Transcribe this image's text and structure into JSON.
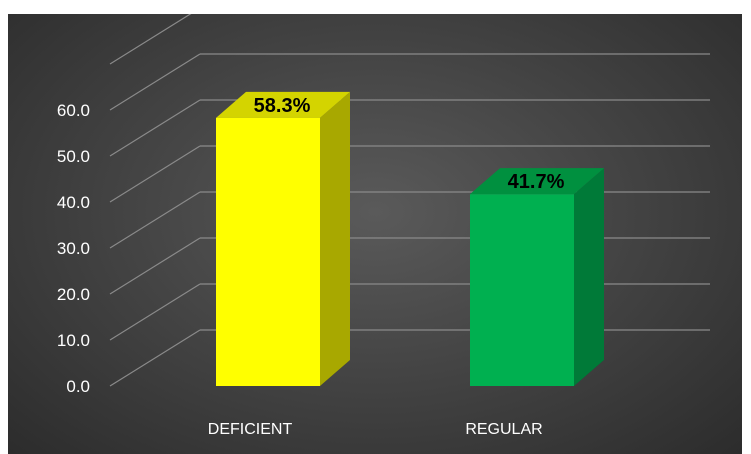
{
  "chart_data": {
    "type": "bar",
    "categories": [
      "DEFICIENT",
      "REGULAR"
    ],
    "values": [
      58.3,
      41.7
    ],
    "data_labels": [
      "58.3%",
      "41.7%"
    ],
    "title": "",
    "xlabel": "",
    "ylabel": "",
    "ylim": [
      0,
      60
    ],
    "y_ticks": [
      "0.0",
      "10.0",
      "20.0",
      "30.0",
      "40.0",
      "50.0",
      "60.0"
    ],
    "grid": true,
    "legend": "none",
    "style": "3d-column",
    "colors": {
      "front": [
        "#ffff00",
        "#00b050"
      ],
      "side": [
        "#a8a800",
        "#007a38"
      ],
      "top": [
        "#d4d400",
        "#00903f"
      ],
      "gridline": "#8a8a8a"
    }
  }
}
